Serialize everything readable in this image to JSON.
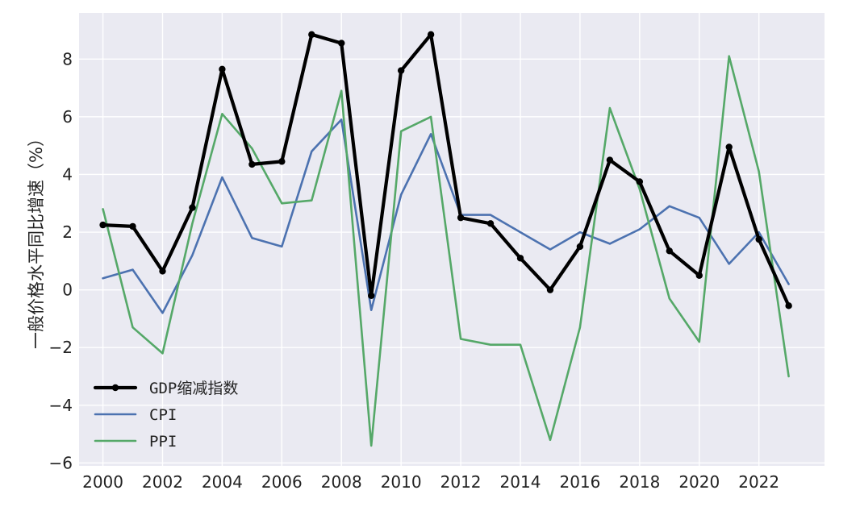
{
  "chart_data": {
    "type": "line",
    "ylabel": "一般价格水平同比增速（%）",
    "xlabel": "",
    "title": "",
    "x": [
      2000,
      2001,
      2002,
      2003,
      2004,
      2005,
      2006,
      2007,
      2008,
      2009,
      2010,
      2011,
      2012,
      2013,
      2014,
      2015,
      2016,
      2017,
      2018,
      2019,
      2020,
      2021,
      2022,
      2023
    ],
    "xlim": [
      1999.2,
      2024.2
    ],
    "ylim": [
      -6.1,
      9.6
    ],
    "x_ticks": [
      2000,
      2002,
      2004,
      2006,
      2008,
      2010,
      2012,
      2014,
      2016,
      2018,
      2020,
      2022
    ],
    "x_tick_labels": [
      "2000",
      "2002",
      "2004",
      "2006",
      "2008",
      "2010",
      "2012",
      "2014",
      "2016",
      "2018",
      "2020",
      "2022"
    ],
    "y_ticks": [
      -6,
      -4,
      -2,
      0,
      2,
      4,
      6,
      8
    ],
    "y_tick_labels": [
      "−6",
      "−4",
      "−2",
      "0",
      "2",
      "4",
      "6",
      "8"
    ],
    "grid": true,
    "legend_position": "lower-left",
    "series": [
      {
        "name": "GDP缩减指数",
        "color": "#000000",
        "marker": true,
        "values": [
          2.25,
          2.2,
          0.65,
          2.85,
          7.65,
          4.35,
          4.45,
          8.85,
          8.55,
          -0.2,
          7.6,
          8.85,
          2.5,
          2.3,
          1.1,
          0.0,
          1.5,
          4.5,
          3.75,
          1.35,
          0.5,
          4.95,
          1.75,
          -0.55
        ]
      },
      {
        "name": "CPI",
        "color": "#4c72b0",
        "marker": false,
        "values": [
          0.4,
          0.7,
          -0.8,
          1.2,
          3.9,
          1.8,
          1.5,
          4.8,
          5.9,
          -0.7,
          3.3,
          5.4,
          2.6,
          2.6,
          2.0,
          1.4,
          2.0,
          1.6,
          2.1,
          2.9,
          2.5,
          0.9,
          2.0,
          0.2
        ]
      },
      {
        "name": "PPI",
        "color": "#55a868",
        "marker": false,
        "values": [
          2.8,
          -1.3,
          -2.2,
          2.3,
          6.1,
          4.9,
          3.0,
          3.1,
          6.9,
          -5.4,
          5.5,
          6.0,
          -1.7,
          -1.9,
          -1.9,
          -5.2,
          -1.3,
          6.3,
          3.5,
          -0.3,
          -1.8,
          8.1,
          4.1,
          -3.0
        ]
      }
    ]
  }
}
